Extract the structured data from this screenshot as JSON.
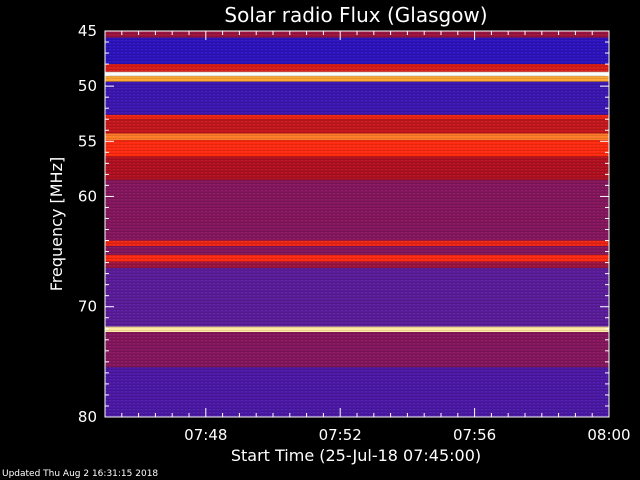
{
  "footer": "Updated Thu Aug  2 16:31:15 2018",
  "chart_data": {
    "type": "heatmap",
    "title": "Solar radio Flux (Glasgow)",
    "ylabel": "Frequency [MHz]",
    "xlabel": "Start Time (25-Jul-18 07:45:00)",
    "x_tick_labels": [
      "07:48",
      "07:52",
      "07:56",
      "08:00"
    ],
    "x_tick_minutes": [
      3,
      7,
      11,
      15
    ],
    "xlim_minutes": [
      0,
      15
    ],
    "y_tick_labels": [
      "45",
      "50",
      "55",
      "60",
      "70",
      "80"
    ],
    "y_tick_values": [
      45,
      50,
      55,
      60,
      70,
      80
    ],
    "ylim": [
      45,
      80
    ],
    "y_inverted": true,
    "colorscale": [
      "#1c10c8",
      "#5a1c9a",
      "#b01020",
      "#ff2a10",
      "#ffd040",
      "#ffffff"
    ],
    "intensity_bands": [
      {
        "freq": [
          45,
          45.6
        ],
        "level": 0.35
      },
      {
        "freq": [
          45.6,
          48
        ],
        "level": 0.05
      },
      {
        "freq": [
          48,
          48.7
        ],
        "level": 0.5
      },
      {
        "freq": [
          48.7,
          49.1
        ],
        "level": 1.0
      },
      {
        "freq": [
          49.1,
          49.6
        ],
        "level": 0.75
      },
      {
        "freq": [
          49.6,
          52.6
        ],
        "level": 0.1
      },
      {
        "freq": [
          52.6,
          53.0
        ],
        "level": 0.55
      },
      {
        "freq": [
          53.0,
          54.3
        ],
        "level": 0.45
      },
      {
        "freq": [
          54.3,
          54.9
        ],
        "level": 0.7
      },
      {
        "freq": [
          54.9,
          56.4
        ],
        "level": 0.6
      },
      {
        "freq": [
          56.4,
          58.5
        ],
        "level": 0.4
      },
      {
        "freq": [
          58.5,
          64.0
        ],
        "level": 0.3
      },
      {
        "freq": [
          64.0,
          64.5
        ],
        "level": 0.55
      },
      {
        "freq": [
          64.5,
          65.3
        ],
        "level": 0.3
      },
      {
        "freq": [
          65.3,
          65.9
        ],
        "level": 0.6
      },
      {
        "freq": [
          65.9,
          66.5
        ],
        "level": 0.35
      },
      {
        "freq": [
          66.5,
          71.8
        ],
        "level": 0.2
      },
      {
        "freq": [
          71.8,
          72.3
        ],
        "level": 0.9
      },
      {
        "freq": [
          72.3,
          75.5
        ],
        "level": 0.3
      },
      {
        "freq": [
          75.5,
          80
        ],
        "level": 0.15
      }
    ],
    "grid": false
  }
}
